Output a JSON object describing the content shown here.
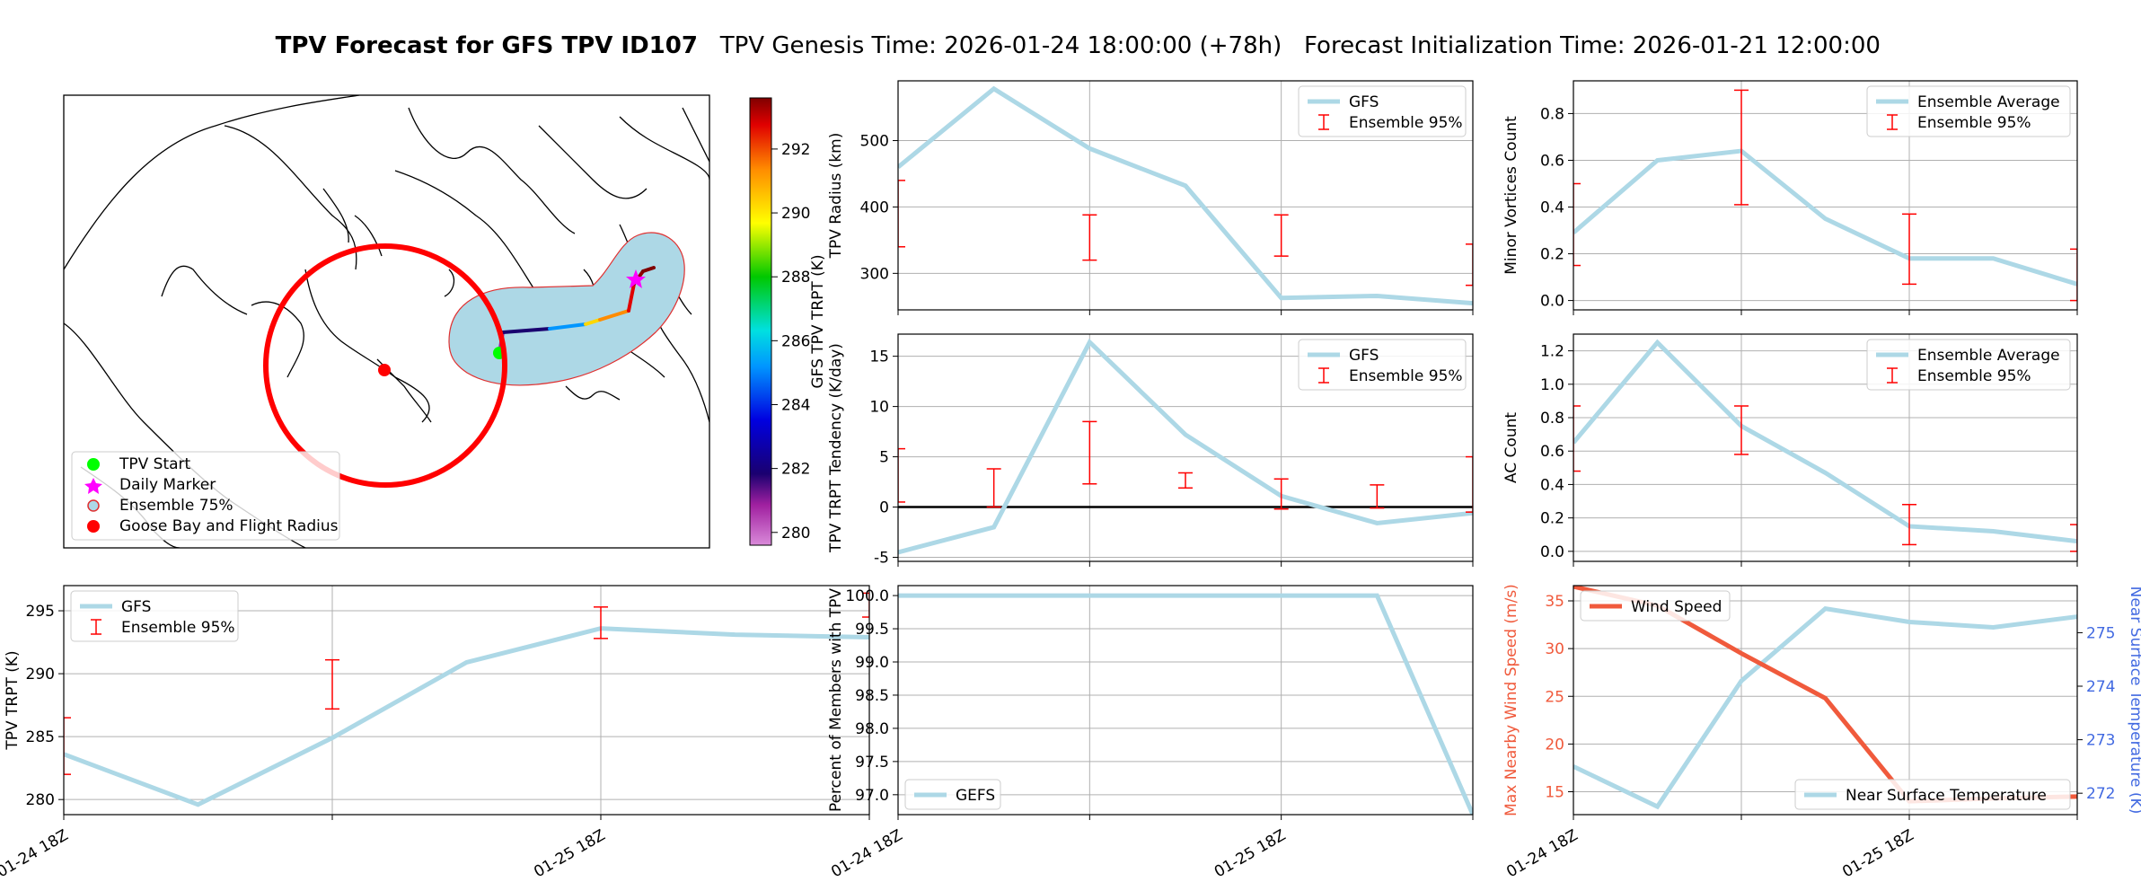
{
  "header": {
    "title_bold": "TPV Forecast for GFS TPV ID107",
    "genesis": "TPV Genesis Time: 2026-01-24 18:00:00 (+78h)",
    "init": "Forecast Initialization Time: 2026-01-21 12:00:00"
  },
  "colors": {
    "gfs_line": "#add8e6",
    "ensemble_err": "#ff0000",
    "wind": "#f05a3c",
    "temp_axis": "#4169e1",
    "circle": "#ff0000",
    "start": "#00ff00",
    "daily": "#ff00ff",
    "goose": "#ff0000"
  },
  "map": {
    "colorbar": {
      "label": "GFS TPV TRPT (K)",
      "ticks": [
        "280",
        "282",
        "284",
        "286",
        "288",
        "290",
        "292"
      ],
      "range": [
        279.6,
        293.6
      ]
    },
    "legend": [
      "TPV Start",
      "Daily Marker",
      "Ensemble 75%",
      "Goose Bay and Flight Radius"
    ]
  },
  "chart_data": [
    {
      "id": "radius",
      "type": "line",
      "ylabel": "TPV Radius (km)",
      "ylim": [
        245,
        590
      ],
      "yticks": [
        300,
        400,
        500
      ],
      "series": [
        {
          "name": "GFS",
          "x": [
            0,
            1,
            2,
            3,
            4,
            5,
            6
          ],
          "values": [
            460,
            578,
            488,
            432,
            263,
            266,
            255
          ]
        }
      ],
      "errorbars": {
        "name": "Ensemble 95%",
        "items": [
          {
            "x": 0,
            "lo": 340,
            "hi": 440
          },
          {
            "x": 2,
            "lo": 320,
            "hi": 388
          },
          {
            "x": 4,
            "lo": 326,
            "hi": 388
          },
          {
            "x": 6,
            "lo": 282,
            "hi": 344
          }
        ]
      },
      "legend": "top-right",
      "xticklabels": false
    },
    {
      "id": "minor",
      "type": "line",
      "ylabel": "Minor Vortices Count",
      "ylim": [
        -0.04,
        0.94
      ],
      "yticks": [
        0.0,
        0.2,
        0.4,
        0.6,
        0.8
      ],
      "series": [
        {
          "name": "Ensemble Average",
          "x": [
            0,
            1,
            2,
            3,
            4,
            5,
            6
          ],
          "values": [
            0.29,
            0.6,
            0.64,
            0.35,
            0.18,
            0.18,
            0.07
          ]
        }
      ],
      "errorbars": {
        "name": "Ensemble 95%",
        "items": [
          {
            "x": 0,
            "lo": 0.15,
            "hi": 0.5
          },
          {
            "x": 2,
            "lo": 0.41,
            "hi": 0.9
          },
          {
            "x": 4,
            "lo": 0.07,
            "hi": 0.37
          },
          {
            "x": 6,
            "lo": 0.0,
            "hi": 0.22
          }
        ]
      },
      "legend": "top-right",
      "xticklabels": false
    },
    {
      "id": "tendency",
      "type": "line",
      "ylabel": "TPV TRPT Tendency (K/day)",
      "ylim": [
        -5.4,
        17.2
      ],
      "yticks": [
        -5,
        0,
        5,
        10,
        15
      ],
      "zero_line": true,
      "series": [
        {
          "name": "GFS",
          "x": [
            0,
            1,
            2,
            3,
            4,
            5,
            6
          ],
          "values": [
            -4.5,
            -2.0,
            16.4,
            7.2,
            1.1,
            -1.6,
            -0.6
          ]
        }
      ],
      "errorbars": {
        "name": "Ensemble 95%",
        "items": [
          {
            "x": 0,
            "lo": 0.5,
            "hi": 5.8
          },
          {
            "x": 1,
            "lo": 0.0,
            "hi": 3.8
          },
          {
            "x": 2,
            "lo": 2.3,
            "hi": 8.5
          },
          {
            "x": 3,
            "lo": 1.9,
            "hi": 3.4
          },
          {
            "x": 4,
            "lo": -0.2,
            "hi": 2.8
          },
          {
            "x": 5,
            "lo": -0.1,
            "hi": 2.2
          },
          {
            "x": 6,
            "lo": -0.5,
            "hi": 5.0
          }
        ]
      },
      "legend": "top-right",
      "xticklabels": false
    },
    {
      "id": "ac",
      "type": "line",
      "ylabel": "AC Count",
      "ylim": [
        -0.06,
        1.3
      ],
      "yticks": [
        0.0,
        0.2,
        0.4,
        0.6,
        0.8,
        1.0,
        1.2
      ],
      "series": [
        {
          "name": "Ensemble Average",
          "x": [
            0,
            1,
            2,
            3,
            4,
            5,
            6
          ],
          "values": [
            0.65,
            1.25,
            0.75,
            0.47,
            0.15,
            0.12,
            0.06
          ]
        }
      ],
      "errorbars": {
        "name": "Ensemble 95%",
        "items": [
          {
            "x": 0,
            "lo": 0.48,
            "hi": 0.87
          },
          {
            "x": 2,
            "lo": 0.58,
            "hi": 0.87
          },
          {
            "x": 4,
            "lo": 0.04,
            "hi": 0.28
          },
          {
            "x": 6,
            "lo": 0.0,
            "hi": 0.16
          }
        ]
      },
      "legend": "top-right",
      "xticklabels": false
    },
    {
      "id": "trpt",
      "type": "line",
      "ylabel": "TPV TRPT (K)",
      "ylim": [
        278.8,
        297.0
      ],
      "yticks": [
        280,
        285,
        290,
        295
      ],
      "series": [
        {
          "name": "GFS",
          "x": [
            0,
            1,
            2,
            3,
            4,
            5,
            6
          ],
          "values": [
            283.6,
            279.6,
            284.9,
            290.9,
            293.6,
            293.1,
            292.9
          ]
        }
      ],
      "errorbars": {
        "name": "Ensemble 95%",
        "items": [
          {
            "x": 0,
            "lo": 282.0,
            "hi": 286.5
          },
          {
            "x": 2,
            "lo": 287.2,
            "hi": 291.1
          },
          {
            "x": 4,
            "lo": 292.8,
            "hi": 295.3
          },
          {
            "x": 6,
            "lo": 294.5,
            "hi": 296.4
          }
        ]
      },
      "legend": "top-left",
      "xticklabels": [
        "01-24 18Z",
        "01-25 18Z"
      ]
    },
    {
      "id": "percent",
      "type": "line",
      "ylabel": "Percent of Members with TPV",
      "ylim": [
        96.7,
        100.15
      ],
      "yticks": [
        97.0,
        97.5,
        98.0,
        98.5,
        99.0,
        99.5,
        100.0
      ],
      "series": [
        {
          "name": "GEFS",
          "x": [
            0,
            1,
            2,
            3,
            4,
            5,
            6
          ],
          "values": [
            100,
            100,
            100,
            100,
            100,
            100,
            96.7
          ]
        }
      ],
      "legend": "bottom-left",
      "xticklabels": [
        "01-24 18Z",
        "01-25 18Z"
      ]
    },
    {
      "id": "wind",
      "type": "line",
      "ylabel": "Max Nearby Wind Speed (m/s)",
      "ylim": [
        12.6,
        36.6
      ],
      "yticks": [
        15,
        20,
        25,
        30,
        35
      ],
      "y2label": "Near Surface Temperature (K)",
      "y2lim": [
        271.6,
        275.88
      ],
      "y2ticks": [
        272,
        273,
        274,
        275
      ],
      "series": [
        {
          "name": "Wind Speed",
          "x": [
            0,
            1,
            2,
            3,
            4,
            5,
            6
          ],
          "values": [
            36.5,
            34.5,
            29.5,
            24.8,
            14.0,
            14.3,
            14.5
          ]
        }
      ],
      "series2": [
        {
          "name": "Near Surface Temperature",
          "x": [
            0,
            1,
            2,
            3,
            4,
            5,
            6
          ],
          "values": [
            272.5,
            271.75,
            274.1,
            275.45,
            275.2,
            275.1,
            275.3
          ]
        }
      ],
      "legend": "top-left",
      "legend2": "bottom-right",
      "xticklabels": [
        "01-24 18Z",
        "01-25 18Z"
      ]
    }
  ]
}
